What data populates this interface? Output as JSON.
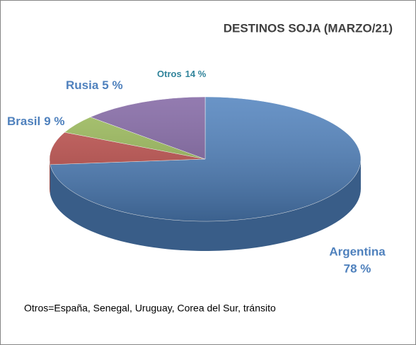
{
  "chart_data": {
    "type": "pie3d",
    "title": "DESTINOS SOJA (MARZO/21)",
    "categories": [
      "Argentina",
      "Brasil",
      "Rusia",
      "Otros"
    ],
    "values": [
      78,
      9,
      5,
      14
    ],
    "value_labels": [
      "78 %",
      "9 %",
      "5 %",
      "14 %"
    ],
    "colors": [
      "#4f81bd",
      "#c0504d",
      "#9bbb59",
      "#8064a2"
    ],
    "note": "Otros=España, Senegal, Uruguay, Corea del Sur, tránsito"
  }
}
